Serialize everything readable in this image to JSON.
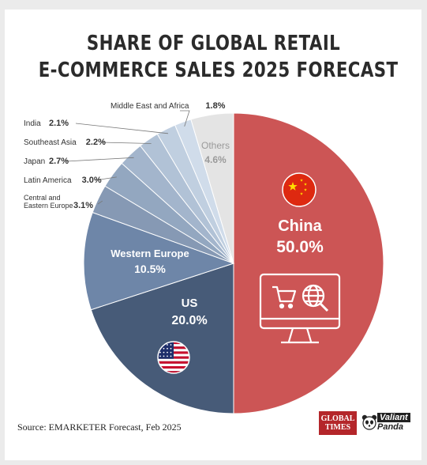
{
  "title_line1": "SHARE OF GLOBAL RETAIL",
  "title_line2": "E-COMMERCE SALES 2025 FORECAST",
  "source": "Source: EMARKETER Forecast, Feb 2025",
  "logos": {
    "global_times_line1": "GLOBAL",
    "global_times_line2": "TIMES",
    "valiant_panda_line1": "Valiant",
    "valiant_panda_line2": "Panda"
  },
  "chart_data": {
    "type": "pie",
    "title": "SHARE OF GLOBAL RETAIL E-COMMERCE SALES 2025 FORECAST",
    "unit": "%",
    "slices": [
      {
        "label": "China",
        "value": 50.0,
        "display": "50.0%",
        "color": "#cc5555"
      },
      {
        "label": "US",
        "value": 20.0,
        "display": "20.0%",
        "color": "#475b78"
      },
      {
        "label": "Western Europe",
        "value": 10.5,
        "display": "10.5%",
        "color": "#6e86a8"
      },
      {
        "label": "Central and Eastern Europe",
        "value": 3.1,
        "display": "3.1%",
        "color": "#8699b4"
      },
      {
        "label": "Latin America",
        "value": 3.0,
        "display": "3.0%",
        "color": "#93a7c0"
      },
      {
        "label": "Japan",
        "value": 2.7,
        "display": "2.7%",
        "color": "#a3b5cc"
      },
      {
        "label": "Southeast Asia",
        "value": 2.2,
        "display": "2.2%",
        "color": "#b1c2d6"
      },
      {
        "label": "India",
        "value": 2.1,
        "display": "2.1%",
        "color": "#c0cfe0"
      },
      {
        "label": "Middle East and Africa",
        "value": 1.8,
        "display": "1.8%",
        "color": "#d0dcea"
      },
      {
        "label": "Others",
        "value": 4.6,
        "display": "4.6%",
        "color": "#e4e4e4"
      }
    ],
    "legend_placement": "callouts on left"
  }
}
